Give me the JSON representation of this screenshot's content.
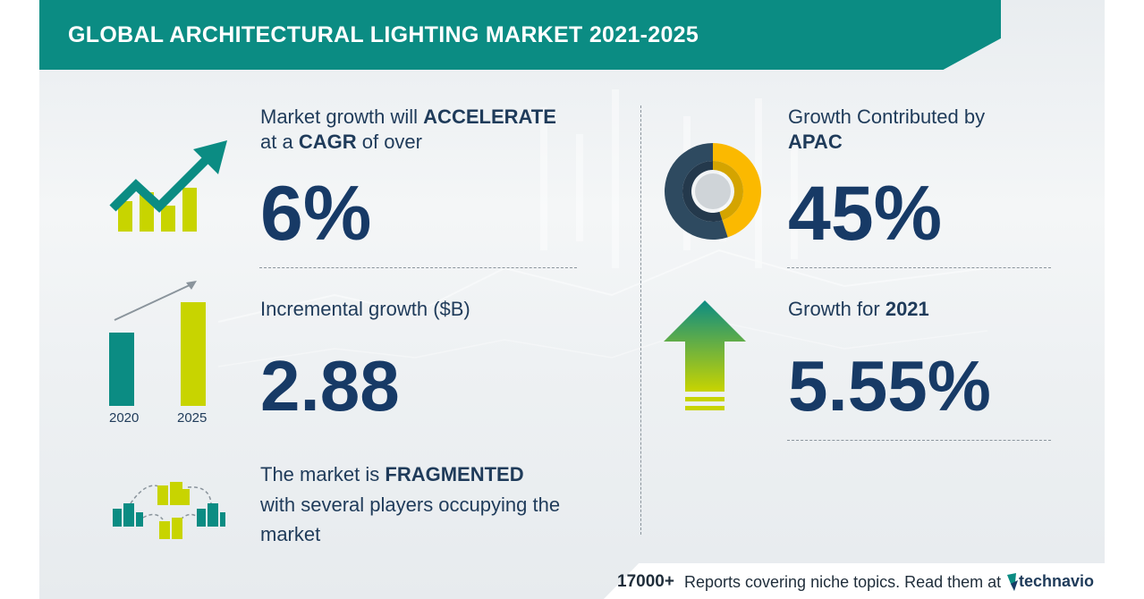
{
  "title": "GLOBAL ARCHITECTURAL LIGHTING MARKET 2021-2025",
  "colors": {
    "teal": "#0b8c83",
    "navy": "#173a66",
    "lime": "#c8d400",
    "yellow": "#fbb900",
    "slate": "#2e4a60"
  },
  "cagr": {
    "line1_prefix": "Market growth will",
    "line1_bold": "ACCELERATE",
    "line2_prefix": "at a",
    "line2_bold": "CAGR",
    "line2_suffix": "of over",
    "value": "6%"
  },
  "incremental": {
    "label": "Incremental growth ($B)",
    "value": "2.88",
    "year_start": "2020",
    "year_end": "2025"
  },
  "market": {
    "prefix": "The market is",
    "bold": "FRAGMENTED",
    "line2": "with several players occupying the",
    "line3": "market"
  },
  "apac": {
    "line1": "Growth Contributed by",
    "region": "APAC",
    "value": "45%",
    "share": 0.45
  },
  "growth2021": {
    "prefix": "Growth for",
    "year": "2021",
    "value": "5.55%"
  },
  "footer": {
    "count": "17000+",
    "text": "Reports covering niche topics. Read them at",
    "brand": "technavio"
  },
  "icons": [
    "trend-up-icon",
    "bar-growth-icon",
    "buildings-network-icon",
    "donut-icon",
    "up-arrow-icon",
    "technavio-logo-icon"
  ]
}
